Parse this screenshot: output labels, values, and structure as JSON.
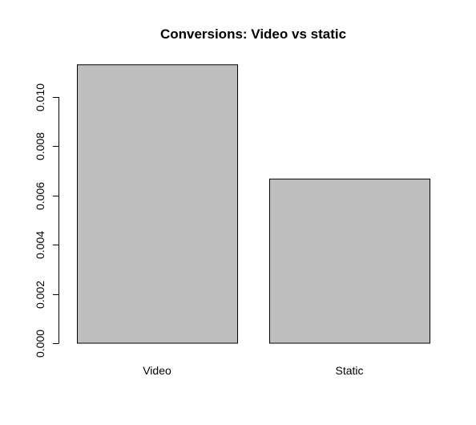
{
  "chart_data": {
    "type": "bar",
    "title": "Conversions: Video vs static",
    "xlabel": "",
    "ylabel": "",
    "categories": [
      "Video",
      "Static"
    ],
    "values": [
      0.01131,
      0.00667
    ],
    "ylim": [
      0,
      0.011
    ],
    "yticks": [
      "0.000",
      "0.002",
      "0.004",
      "0.006",
      "0.008",
      "0.010"
    ],
    "grid": false,
    "colors": {
      "bar_fill": "#bebebe",
      "bar_stroke": "#000000",
      "axis": "#000000",
      "background": "#ffffff"
    }
  }
}
